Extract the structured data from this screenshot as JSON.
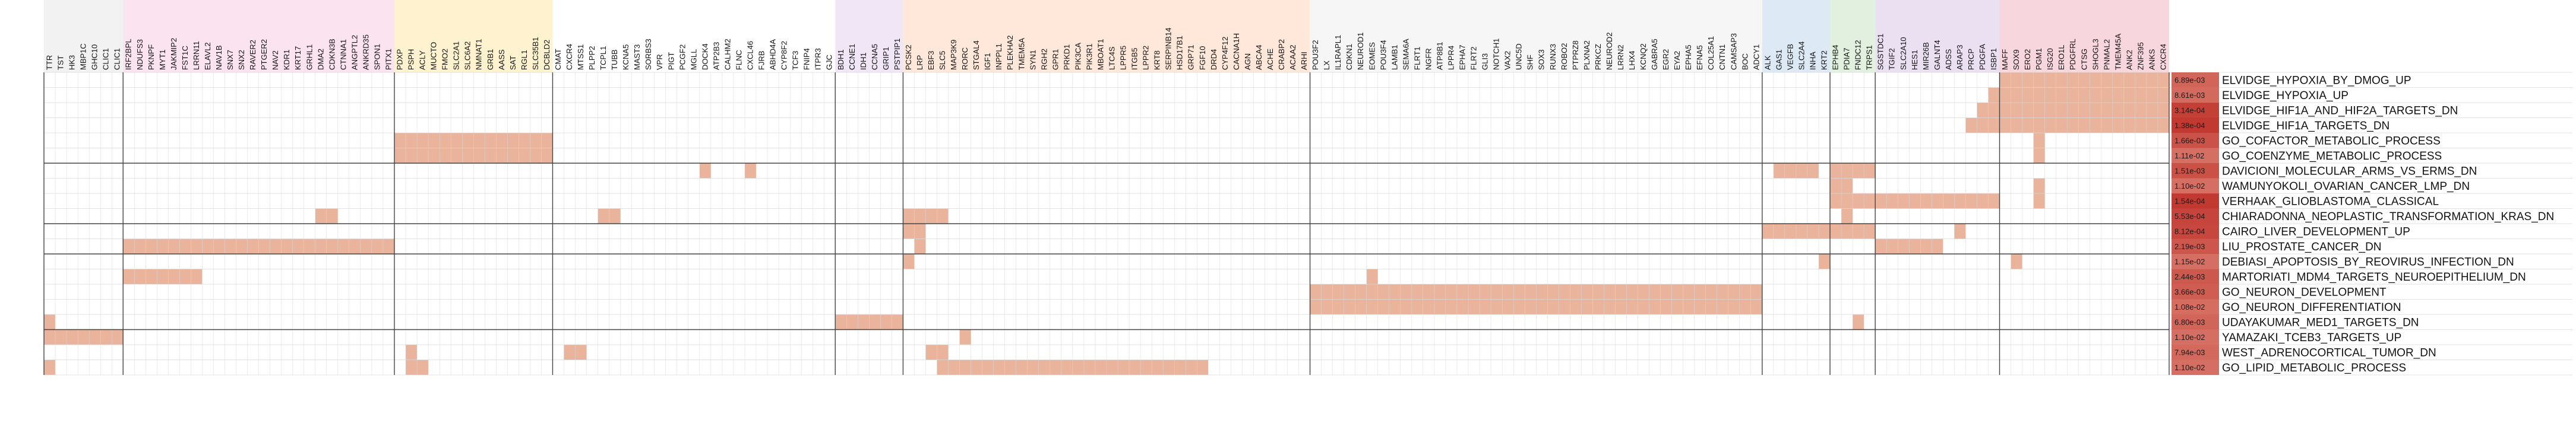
{
  "chart_data": {
    "type": "heatmap",
    "title": "",
    "xlabel": "",
    "ylabel": "",
    "colors": {
      "cell_fill": "#e9b39c",
      "grid_fill": "#ffffff",
      "grid_line": "#d8d8d8",
      "group_line": "#444444",
      "pvalue_dark": "#c0342c",
      "pvalue_light": "#e8a090"
    },
    "column_groups": [
      {
        "color": "#f2f2f2",
        "genes": [
          "TTR",
          "TST",
          "HK3",
          "MBP1C",
          "GHC10",
          "CLIC1",
          "CLIC1"
        ]
      },
      {
        "color": "#fbe3ef",
        "genes": [
          "IRF2BPL",
          "NDUFS3",
          "PKNPF",
          "MYT1",
          "JAKMIP2",
          "FST1C",
          "LRRN11",
          "ELAVL2",
          "NAV1B",
          "SNX7",
          "SNX2",
          "RAVER2",
          "PTGER2",
          "NAV2",
          "KDR1",
          "KRT17",
          "GRHL1",
          "DMA2",
          "CDKN3B",
          "CTNNA1",
          "ANGPTL2",
          "ANKRD35",
          "SPON1",
          "PITX1"
        ]
      },
      {
        "color": "#fff3cf",
        "genes": [
          "PDXP",
          "PSPH",
          "ACLY",
          "MUCTO",
          "FMO2",
          "SLC2A1",
          "SLC6A2",
          "NMNAT1",
          "GRB1",
          "AASS",
          "SAT",
          "RGL1",
          "SLC35B1",
          "DCBLD2"
        ]
      },
      {
        "color": "#ffffff",
        "genes": [
          "CMAT",
          "CXCR4",
          "MTSS1",
          "PLPP2",
          "TCPL1",
          "TUBB",
          "KCNA5",
          "MAST3",
          "SORBS3",
          "VPR",
          "PIGT",
          "PCGF2",
          "MGLL",
          "DOCK4",
          "ATP2B3",
          "CALHM2",
          "FLNC",
          "CXCL46",
          "FJRB",
          "ABHD4A",
          "CYP8F2",
          "TCF3",
          "FNIP4",
          "ITPR3",
          "GJC"
        ]
      },
      {
        "color": "#f0e6f6",
        "genes": [
          "BDH1",
          "CCNE1",
          "IDH1",
          "CCNA5",
          "GRIP1",
          "PSTPIP1"
        ]
      },
      {
        "color": "#ffe8d9",
        "genes": [
          "PCSK2",
          "LRP",
          "EBF3",
          "SLC5",
          "MAP3K9",
          "RORC",
          "STGAL4",
          "IGF1",
          "INPPL1",
          "PLEKHA2",
          "TMEM5A",
          "SYN1",
          "RGH2",
          "GPR1",
          "PRKD1",
          "PIK3CA",
          "PIK3R1",
          "MBOAT1",
          "LTC4S",
          "LPPR5",
          "ITGB5",
          "LPPR2",
          "KRT8",
          "SERPINB14",
          "HSD17B1",
          "GRP71",
          "FGF10",
          "DRD4",
          "CYP4F12",
          "CACNA1H",
          "AGN",
          "ABCA4",
          "ACHE",
          "CRABP2",
          "ACAA2",
          "ARHI"
        ]
      },
      {
        "color": "#f6f6f6",
        "genes": [
          "POU3F2",
          "LX",
          "IL1RAPL1",
          "CDKN1",
          "NEUROD1",
          "EOMES",
          "POU3F4",
          "LAMB1",
          "SEMA6A",
          "FLRT1",
          "NGFR",
          "ATP8B1",
          "LPPR4",
          "EPHA7",
          "FLRT2",
          "GLI3",
          "NOTCH1",
          "VAX2",
          "UNC5D",
          "SHF",
          "SOX3",
          "RUNX3",
          "ROBO2",
          "PTPRZ8",
          "PLXNA2",
          "PRKCZ",
          "NEUROD2",
          "LRRN2",
          "LHX4",
          "KCNQ2",
          "GABRA5",
          "EGR2",
          "EYA2",
          "EPHA5",
          "EFNA5",
          "COL25A1",
          "CNTN1",
          "CAMSAP3",
          "BOC",
          "ADCY1"
        ]
      },
      {
        "color": "#dde9f5",
        "genes": [
          "ALK",
          "GAS1",
          "VEGFB",
          "SLC2A4",
          "INHA",
          "KRT2"
        ]
      },
      {
        "color": "#e2f1df",
        "genes": [
          "EPHB4",
          "PDIA7",
          "FNDC12",
          "TRPS1"
        ]
      },
      {
        "color": "#ebe0f2",
        "genes": [
          "SGSTDC1",
          "TGIF2",
          "SLC2A10",
          "HES1",
          "MIR26B",
          "GALNT4",
          "ADSS",
          "ARAP3",
          "PRCP",
          "PDGFA",
          "ISBP1"
        ]
      },
      {
        "color": "#f8d6dd",
        "genes": [
          "MAFF",
          "SOX9",
          "ERO2",
          "PGM1",
          "ISG20",
          "ERO1L",
          "PDGFRL",
          "CTSG",
          "SHOGL3",
          "PNMAL2",
          "TMEM45A",
          "ANK2",
          "ZNF395",
          "ANKS",
          "CXCR4"
        ]
      }
    ],
    "pathways": [
      {
        "name": "ELVIDGE_HYPOXIA_BY_DMOG_UP",
        "pvalue": "6.89e-03",
        "strength": 0.55,
        "groups": [
          {
            "g": 10,
            "from": 0,
            "to": 15
          }
        ]
      },
      {
        "name": "ELVIDGE_HYPOXIA_UP",
        "pvalue": "8.61e-03",
        "strength": 0.5,
        "groups": [
          {
            "g": 10,
            "from": 0,
            "to": 15
          },
          {
            "g": 9,
            "from": 10,
            "to": 11
          }
        ]
      },
      {
        "name": "ELVIDGE_HIF1A_AND_HIF2A_TARGETS_DN",
        "pvalue": "3.14e-04",
        "strength": 0.9,
        "groups": [
          {
            "g": 10,
            "from": 0,
            "to": 15
          },
          {
            "g": 9,
            "from": 9,
            "to": 11
          }
        ]
      },
      {
        "name": "ELVIDGE_HIF1A_TARGETS_DN",
        "pvalue": "1.38e-04",
        "strength": 0.95,
        "groups": [
          {
            "g": 10,
            "from": 0,
            "to": 15
          },
          {
            "g": 9,
            "from": 8,
            "to": 11
          }
        ]
      },
      {
        "name": "GO_COFACTOR_METABOLIC_PROCESS",
        "pvalue": "1.66e-03",
        "strength": 0.72,
        "groups": [
          {
            "g": 2,
            "from": 0,
            "to": 14
          },
          {
            "g": 10,
            "from": 3,
            "to": 4
          }
        ]
      },
      {
        "name": "GO_COENZYME_METABOLIC_PROCESS",
        "pvalue": "1.11e-02",
        "strength": 0.45,
        "groups": [
          {
            "g": 2,
            "from": 0,
            "to": 14
          },
          {
            "g": 10,
            "from": 3,
            "to": 4
          }
        ]
      },
      {
        "name": "DAVICIONI_MOLECULAR_ARMS_VS_ERMS_DN",
        "pvalue": "1.51e-03",
        "strength": 0.73,
        "groups": [
          {
            "g": 3,
            "from": 13,
            "to": 14
          },
          {
            "g": 3,
            "from": 17,
            "to": 18
          },
          {
            "g": 7,
            "from": 1,
            "to": 5
          },
          {
            "g": 8,
            "from": 0,
            "to": 4
          }
        ]
      },
      {
        "name": "WAMUNYOKOLI_OVARIAN_CANCER_LMP_DN",
        "pvalue": "1.10e-02",
        "strength": 0.45,
        "groups": [
          {
            "g": 8,
            "from": 0,
            "to": 2
          },
          {
            "g": 10,
            "from": 3,
            "to": 4
          }
        ]
      },
      {
        "name": "VERHAAK_GLIOBLASTOMA_CLASSICAL",
        "pvalue": "1.54e-04",
        "strength": 0.95,
        "groups": [
          {
            "g": 8,
            "from": 0,
            "to": 4
          },
          {
            "g": 9,
            "from": 0,
            "to": 11
          },
          {
            "g": 10,
            "from": 3,
            "to": 4
          }
        ]
      },
      {
        "name": "CHIARADONNA_NEOPLASTIC_TRANSFORMATION_KRAS_DN",
        "pvalue": "5.53e-04",
        "strength": 0.85,
        "groups": [
          {
            "g": 1,
            "from": 17,
            "to": 19
          },
          {
            "g": 3,
            "from": 4,
            "to": 6
          },
          {
            "g": 5,
            "from": 0,
            "to": 4
          },
          {
            "g": 8,
            "from": 1,
            "to": 2
          }
        ]
      },
      {
        "name": "CAIRO_LIVER_DEVELOPMENT_UP",
        "pvalue": "8.12e-04",
        "strength": 0.83,
        "groups": [
          {
            "g": 5,
            "from": 0,
            "to": 2
          },
          {
            "g": 7,
            "from": 0,
            "to": 6
          },
          {
            "g": 8,
            "from": 0,
            "to": 4
          },
          {
            "g": 9,
            "from": 7,
            "to": 8
          }
        ]
      },
      {
        "name": "LIU_PROSTATE_CANCER_DN",
        "pvalue": "2.19e-03",
        "strength": 0.68,
        "groups": [
          {
            "g": 1,
            "from": 0,
            "to": 24
          },
          {
            "g": 5,
            "from": 1,
            "to": 2
          },
          {
            "g": 9,
            "from": 0,
            "to": 6
          }
        ]
      },
      {
        "name": "DEBIASI_APOPTOSIS_BY_REOVIRUS_INFECTION_DN",
        "pvalue": "1.15e-02",
        "strength": 0.45,
        "groups": [
          {
            "g": 5,
            "from": 0,
            "to": 1
          },
          {
            "g": 7,
            "from": 5,
            "to": 6
          },
          {
            "g": 10,
            "from": 1,
            "to": 2
          }
        ]
      },
      {
        "name": "MARTORIATI_MDM4_TARGETS_NEUROEPITHELIUM_DN",
        "pvalue": "2.44e-03",
        "strength": 0.67,
        "groups": [
          {
            "g": 1,
            "from": 0,
            "to": 7
          },
          {
            "g": 6,
            "from": 5,
            "to": 6
          }
        ]
      },
      {
        "name": "GO_NEURON_DEVELOPMENT",
        "pvalue": "3.66e-03",
        "strength": 0.62,
        "groups": [
          {
            "g": 6,
            "from": 0,
            "to": 40
          }
        ]
      },
      {
        "name": "GO_NEURON_DIFFERENTIATION",
        "pvalue": "1.08e-02",
        "strength": 0.47,
        "groups": [
          {
            "g": 6,
            "from": 0,
            "to": 40
          }
        ]
      },
      {
        "name": "UDAYAKUMAR_MED1_TARGETS_DN",
        "pvalue": "6.80e-03",
        "strength": 0.55,
        "groups": [
          {
            "g": 0,
            "from": 0,
            "to": 1
          },
          {
            "g": 4,
            "from": 0,
            "to": 6
          },
          {
            "g": 8,
            "from": 2,
            "to": 3
          }
        ]
      },
      {
        "name": "YAMAZAKI_TCEB3_TARGETS_UP",
        "pvalue": "1.10e-02",
        "strength": 0.45,
        "groups": [
          {
            "g": 0,
            "from": 0,
            "to": 7
          },
          {
            "g": 5,
            "from": 5,
            "to": 6
          }
        ]
      },
      {
        "name": "WEST_ADRENOCORTICAL_TUMOR_DN",
        "pvalue": "7.94e-03",
        "strength": 0.52,
        "groups": [
          {
            "g": 2,
            "from": 1,
            "to": 2
          },
          {
            "g": 3,
            "from": 1,
            "to": 3
          },
          {
            "g": 5,
            "from": 2,
            "to": 4
          }
        ]
      },
      {
        "name": "GO_LIPID_METABOLIC_PROCESS",
        "pvalue": "1.10e-02",
        "strength": 0.45,
        "groups": [
          {
            "g": 0,
            "from": 0,
            "to": 1
          },
          {
            "g": 2,
            "from": 1,
            "to": 3
          },
          {
            "g": 5,
            "from": 3,
            "to": 27
          }
        ]
      }
    ]
  }
}
